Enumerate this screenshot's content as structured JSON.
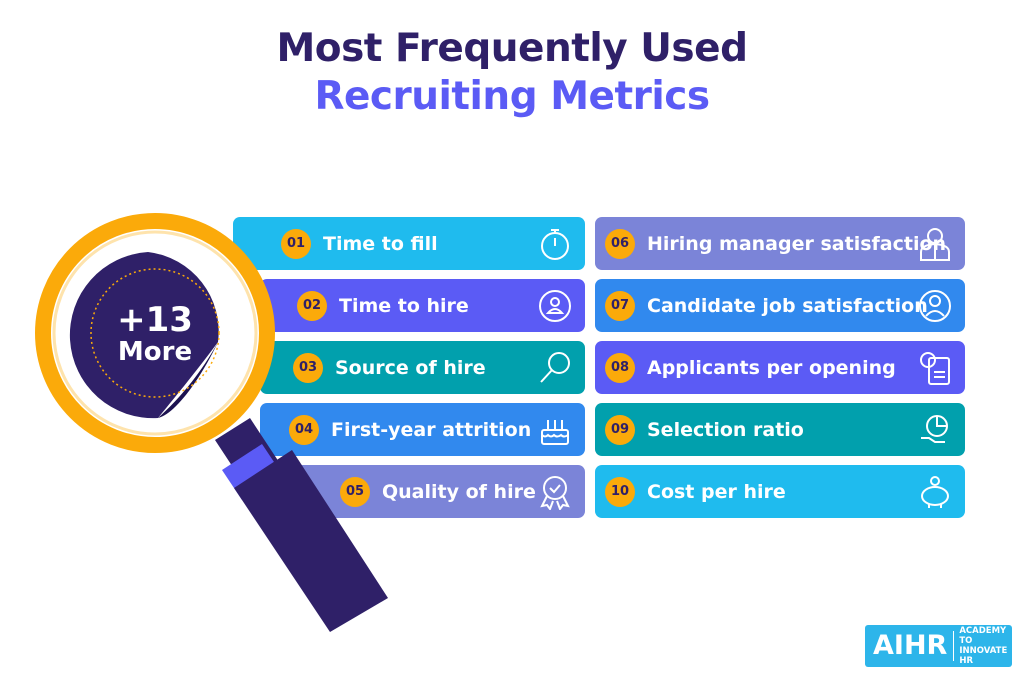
{
  "title": {
    "line1": "Most Frequently Used",
    "line2": "Recruiting Metrics"
  },
  "magnifier": {
    "line1": "+13",
    "line2": "More"
  },
  "colors": {
    "badge": "#fbaa0a",
    "dark": "#2f2068",
    "accent": "#5b5bf5"
  },
  "metrics": [
    {
      "num": "01",
      "label": "Time to fill",
      "icon": "stopwatch-icon",
      "color": "#1fbbee"
    },
    {
      "num": "02",
      "label": "Time to hire",
      "icon": "user-cycle-icon",
      "color": "#5b5bf5"
    },
    {
      "num": "03",
      "label": "Source of hire",
      "icon": "magnifier-icon",
      "color": "#01a0ad"
    },
    {
      "num": "04",
      "label": "First-year attrition",
      "icon": "birthday-cake-icon",
      "color": "#3189ee"
    },
    {
      "num": "05",
      "label": "Quality of hire",
      "icon": "award-badge-icon",
      "color": "#7b84d8"
    },
    {
      "num": "06",
      "label": "Hiring manager satisfaction",
      "icon": "manager-icon",
      "color": "#7b84d8"
    },
    {
      "num": "07",
      "label": "Candidate job satisfaction",
      "icon": "user-check-icon",
      "color": "#3189ee"
    },
    {
      "num": "08",
      "label": "Applicants per opening",
      "icon": "applicant-document-icon",
      "color": "#5b5bf5"
    },
    {
      "num": "09",
      "label": "Selection ratio",
      "icon": "pie-chart-hand-icon",
      "color": "#01a0ad"
    },
    {
      "num": "10",
      "label": "Cost per hire",
      "icon": "piggy-bank-icon",
      "color": "#1fbbee"
    }
  ],
  "logo": {
    "main": "AIHR",
    "sub": "ACADEMY TO INNOVATE HR"
  }
}
